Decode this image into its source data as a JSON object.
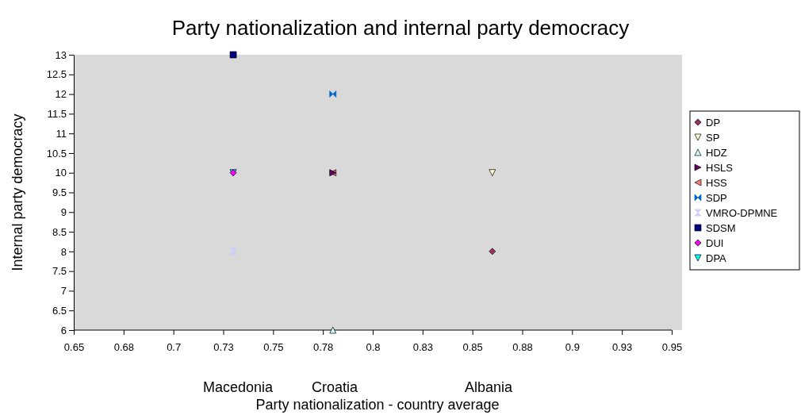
{
  "chart_data": {
    "type": "scatter",
    "title": "Party nationalization and internal party democracy",
    "xlabel": "Party nationalization - country average",
    "ylabel": "Internal party democracy",
    "xlim": [
      0.65,
      0.95
    ],
    "xticks": [
      0.65,
      {
        "value": 0.675,
        "label": "0.68"
      },
      0.7,
      {
        "value": 0.725,
        "label": "0.73"
      },
      0.75,
      {
        "value": 0.775,
        "label": "0.78"
      },
      0.8,
      {
        "value": 0.825,
        "label": "0.83"
      },
      {
        "value": 0.85,
        "label": "0.85"
      },
      {
        "value": 0.875,
        "label": "0.88"
      },
      0.9,
      {
        "value": 0.925,
        "label": "0.93"
      },
      0.95
    ],
    "ylim": [
      6,
      13
    ],
    "yticks": [
      6,
      6.5,
      7,
      7.5,
      8,
      8.5,
      9,
      9.5,
      10,
      10.5,
      11,
      11.5,
      12,
      12.5,
      13
    ],
    "grid": false,
    "legend": "right",
    "annotations": [
      "Macedonia",
      "Croatia",
      "Albania"
    ],
    "series": [
      {
        "name": "DP",
        "color": "#993366",
        "marker": "diamond",
        "x": [
          0.86
        ],
        "values": [
          8
        ]
      },
      {
        "name": "SP",
        "color": "#ffffcc",
        "marker": "triangle-down",
        "x": [
          0.86
        ],
        "values": [
          10
        ]
      },
      {
        "name": "HDZ",
        "color": "#ccffff",
        "marker": "triangle",
        "x": [
          0.78
        ],
        "values": [
          6
        ]
      },
      {
        "name": "HSLS",
        "color": "#660066",
        "marker": "triangle-right",
        "x": [
          0.78
        ],
        "values": [
          10
        ]
      },
      {
        "name": "HSS",
        "color": "#ff8080",
        "marker": "triangle-left",
        "x": [
          0.78
        ],
        "values": [
          10
        ]
      },
      {
        "name": "SDP",
        "color": "#0066cc",
        "x": [
          0.78
        ],
        "values": [
          12
        ]
      },
      {
        "name": "VMRO-DPMNE",
        "color": "#ccccff",
        "x": [
          0.73
        ],
        "values": [
          8
        ]
      },
      {
        "name": "SDSM",
        "color": "#000080",
        "marker": "square",
        "x": [
          0.73
        ],
        "values": [
          13
        ]
      },
      {
        "name": "DUI",
        "color": "#ff00ff",
        "marker": "diamond",
        "x": [
          0.73
        ],
        "values": [
          10
        ]
      },
      {
        "name": "DPA",
        "color": "#00ffff",
        "marker": "triangle-down",
        "x": [
          0.73
        ],
        "values": [
          10
        ]
      }
    ]
  }
}
